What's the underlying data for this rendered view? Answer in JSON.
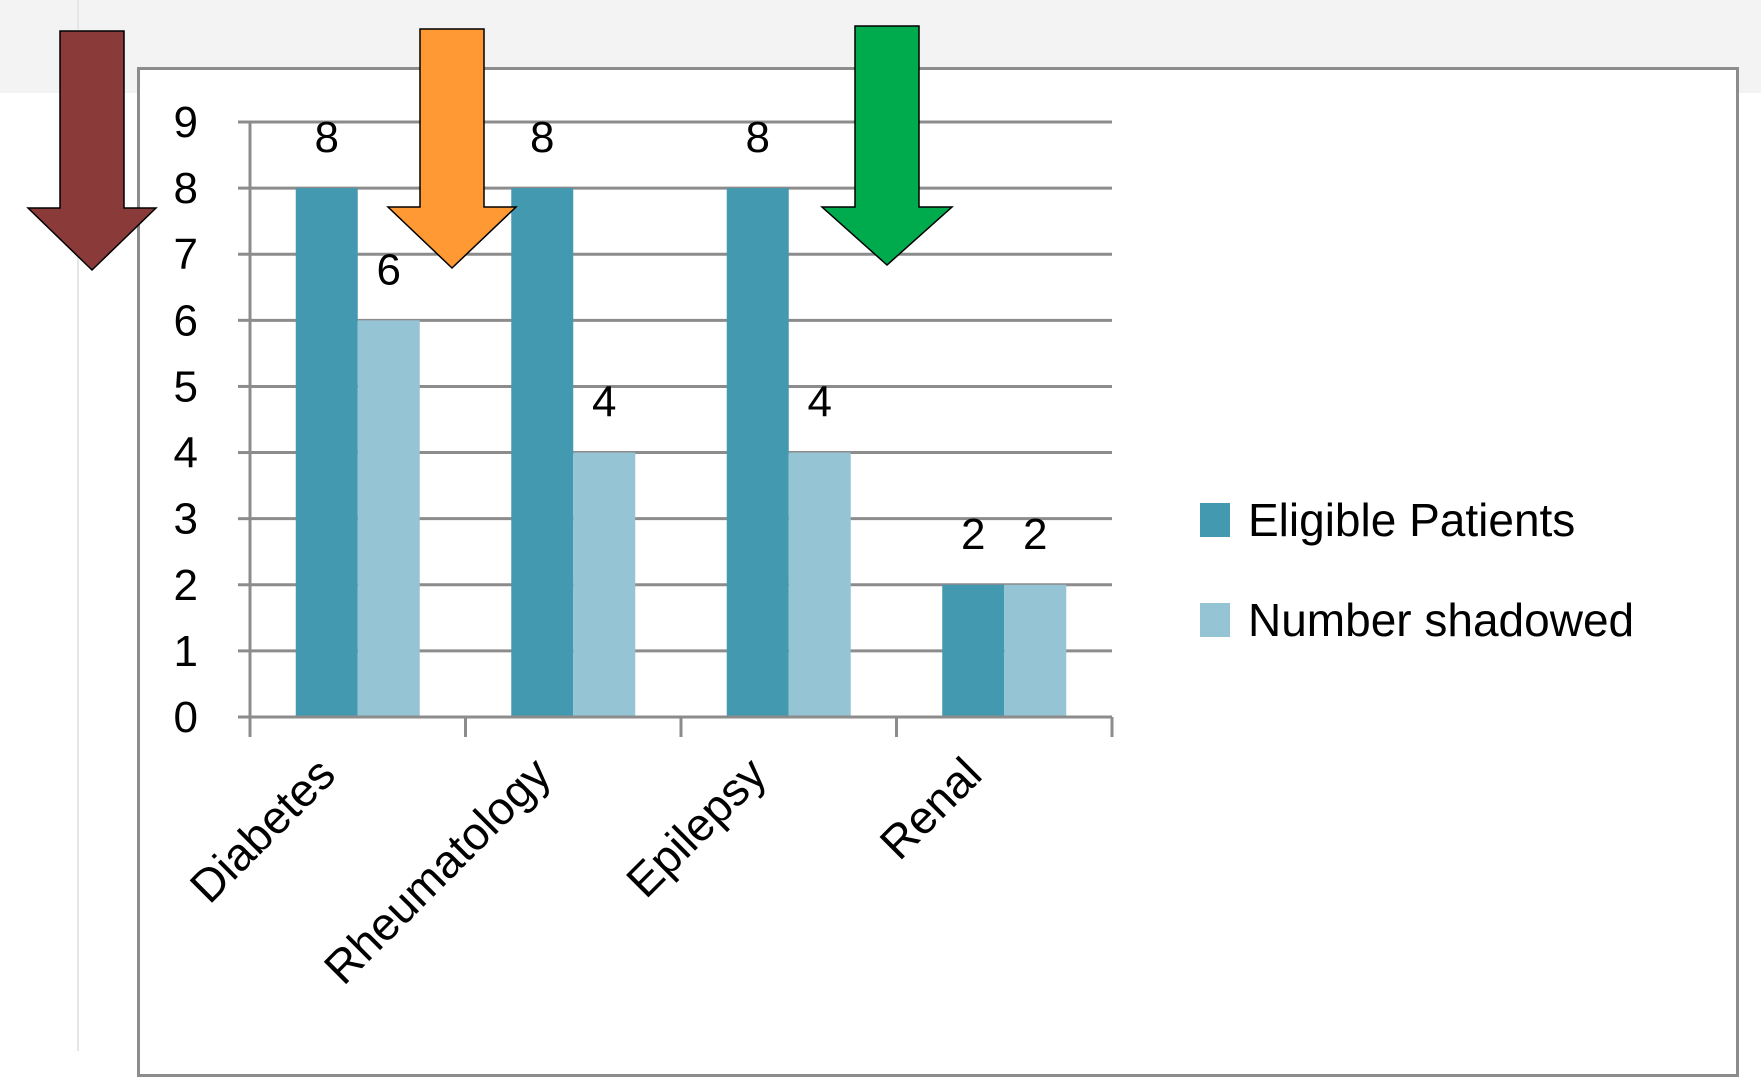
{
  "chart_data": {
    "type": "bar",
    "categories": [
      "Diabetes",
      "Rheumatology",
      "Epilepsy",
      "Renal"
    ],
    "series": [
      {
        "name": "Eligible Patients",
        "values": [
          8,
          8,
          8,
          2
        ],
        "color": "#4399b0"
      },
      {
        "name": "Number shadowed",
        "values": [
          6,
          4,
          4,
          2
        ],
        "color": "#95c4d5"
      }
    ],
    "yticks": [
      "0",
      "1",
      "2",
      "3",
      "4",
      "5",
      "6",
      "7",
      "8",
      "9"
    ],
    "ylim": [
      0,
      9
    ],
    "grid": true,
    "legend_position": "right",
    "title": "",
    "xlabel": "",
    "ylabel": ""
  },
  "arrows": [
    {
      "name": "red",
      "color": "#8b3a3a",
      "points_to_category": "Diabetes"
    },
    {
      "name": "orange",
      "color": "#ff9933",
      "points_to_category": "Rheumatology"
    },
    {
      "name": "green",
      "color": "#00ab4e",
      "points_to_category": "Epilepsy"
    }
  ]
}
